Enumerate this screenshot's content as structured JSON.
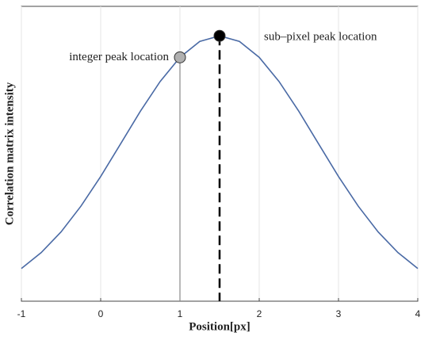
{
  "chart_data": {
    "type": "line",
    "x_label": "Position[px]",
    "y_label": "Correlation matrix intensity",
    "x": [
      -1,
      -0.75,
      -0.5,
      -0.25,
      0,
      0.25,
      0.5,
      0.75,
      1,
      1.25,
      1.5,
      1.75,
      2,
      2.25,
      2.5,
      2.75,
      3,
      3.25,
      3.5,
      3.75,
      4
    ],
    "series": [
      {
        "color": "#4a6aa5",
        "values": [
          0.111,
          0.165,
          0.235,
          0.322,
          0.423,
          0.533,
          0.644,
          0.745,
          0.827,
          0.881,
          0.9,
          0.881,
          0.827,
          0.745,
          0.644,
          0.533,
          0.423,
          0.322,
          0.235,
          0.165,
          0.111
        ]
      }
    ],
    "markers": [
      {
        "label": "integer peak location",
        "x": 1,
        "y": 0.827,
        "color": "#b0b0b0",
        "line_color": "#888888",
        "dashed": false
      },
      {
        "label": "sub–pixel peak location",
        "x": 1.5,
        "y": 0.9,
        "color": "#000000",
        "line_color": "#000000",
        "dashed": true
      }
    ],
    "xlim": [
      -1,
      4
    ],
    "ylim": [
      0,
      1
    ],
    "xticks": [
      -1,
      0,
      1,
      2,
      3,
      4
    ],
    "grid": true
  }
}
